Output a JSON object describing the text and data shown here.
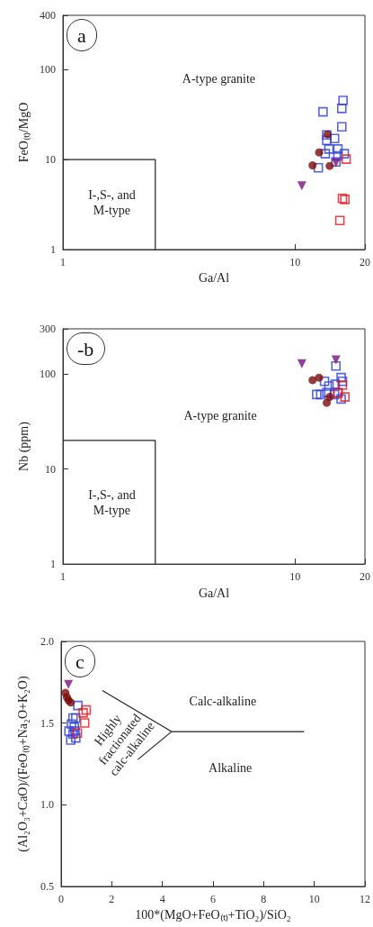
{
  "chart_data": [
    {
      "type": "scatter",
      "title": "a",
      "xlabel": "Ga/Al",
      "ylabel": "FeO₍ₜ₎/MgO",
      "log": "xy",
      "xlim": [
        1,
        20
      ],
      "xticks": [
        1,
        10,
        20
      ],
      "ylim": [
        1,
        400
      ],
      "yticks": [
        1,
        10,
        100,
        400
      ],
      "grid": false,
      "annotations": [
        "A-type granite",
        "I-,S-, and\nM-type"
      ],
      "series": [
        {
          "type": "line",
          "color": "#222222",
          "x": [
            1,
            2.5,
            2.5
          ],
          "values": [
            10,
            10,
            1
          ]
        },
        {
          "marker": "square",
          "color": "#2b3fd6",
          "x": [
            13.2,
            16.1,
            15.9,
            15.9,
            13.7,
            13.7,
            14.8,
            14.0,
            15.3,
            13.5,
            15.3,
            16.3,
            12.6,
            15.0
          ],
          "values": [
            33.9,
            45.4,
            36.9,
            23.1,
            18.8,
            16.3,
            17.1,
            13.1,
            13.1,
            11.6,
            11.0,
            11.6,
            8.1,
            9.4
          ]
        },
        {
          "marker": "circle",
          "color": "#7a0a0a",
          "x": [
            13.8,
            12.7,
            11.9,
            14.1
          ],
          "values": [
            19.0,
            12.0,
            8.6,
            8.5
          ]
        },
        {
          "marker": "triangle",
          "color": "#7b1080",
          "x": [
            10.7,
            15.0
          ],
          "values": [
            5.1,
            9.2
          ]
        },
        {
          "marker": "square",
          "color": "#e8141c",
          "x": [
            16.6,
            16.0,
            16.4,
            15.6
          ],
          "values": [
            10.1,
            3.7,
            3.6,
            2.1
          ]
        }
      ]
    },
    {
      "type": "scatter",
      "title": "-b",
      "xlabel": "Ga/Al",
      "ylabel": "Nb (ppm)",
      "log": "xy",
      "xlim": [
        1,
        20
      ],
      "xticks": [
        1,
        10,
        20
      ],
      "ylim": [
        1,
        300
      ],
      "yticks": [
        1,
        10,
        100,
        300
      ],
      "grid": false,
      "annotations": [
        "A-type granite",
        "I-,S-, and\nM-type"
      ],
      "series": [
        {
          "type": "line",
          "color": "#222222",
          "x": [
            1,
            2.5,
            2.5
          ],
          "values": [
            20,
            20,
            1
          ]
        },
        {
          "marker": "square",
          "color": "#2b3fd6",
          "x": [
            15.0,
            13.4,
            14.0,
            14.9,
            15.8,
            16.0,
            12.4,
            12.9,
            13.7,
            15.3,
            15.8,
            14.8
          ],
          "values": [
            122,
            84,
            75,
            78,
            92,
            84,
            61,
            61,
            64,
            64,
            54.7,
            61
          ]
        },
        {
          "marker": "circle",
          "color": "#7a0a0a",
          "x": [
            11.9,
            12.7,
            14.1,
            13.7
          ],
          "values": [
            86.6,
            91.8,
            57.5,
            49.9
          ]
        },
        {
          "marker": "triangle",
          "color": "#7b1080",
          "x": [
            10.7,
            15.0
          ],
          "values": [
            129,
            141
          ]
        },
        {
          "marker": "square",
          "color": "#e8141c",
          "x": [
            16.0,
            16.4,
            15.3
          ],
          "values": [
            76.7,
            57.5,
            63
          ]
        }
      ]
    },
    {
      "type": "scatter",
      "title": "c",
      "xlabel": "100*(MgO+FeO₍ₜ₎+TiO₂)/SiO₂",
      "ylabel": "(Al₂O₃+CaO)/(FeO₍ₜ₎+Na₂O+K₂O)",
      "xlim": [
        0,
        12
      ],
      "xticks": [
        0,
        2,
        4,
        6,
        8,
        10,
        12
      ],
      "ylim": [
        0.5,
        2.0
      ],
      "yticks": [
        {
          "value": 0.5,
          "label": "0.5"
        },
        {
          "value": 1,
          "label": "1.0"
        },
        {
          "value": 1.5,
          "label": "1.5"
        },
        {
          "value": 2,
          "label": "2.0"
        }
      ],
      "grid": false,
      "annotations": [
        "Calc-alkaline",
        "Alkaline",
        "Highly\nfractionated\ncalc-alkaline"
      ],
      "series": [
        {
          "type": "line",
          "color": "#222222",
          "x": [
            1.63,
            4.36,
            9.6
          ],
          "values": [
            1.7,
            1.448,
            1.448
          ]
        },
        {
          "type": "line",
          "color": "#222222",
          "x": [
            3.03,
            4.36
          ],
          "values": [
            1.277,
            1.448
          ]
        },
        {
          "marker": "square",
          "color": "#2b3fd6",
          "x": [
            0.66,
            0.47,
            0.58,
            0.41,
            0.52,
            0.31,
            0.55,
            0.38,
            0.58,
            0.47
          ],
          "values": [
            1.608,
            1.531,
            1.531,
            1.494,
            1.475,
            1.451,
            1.451,
            1.396,
            1.409,
            1.433
          ]
        },
        {
          "marker": "circle",
          "color": "#7a0a0a",
          "x": [
            0.17,
            0.23,
            0.29,
            0.38
          ],
          "values": [
            1.685,
            1.658,
            1.64,
            1.626
          ]
        },
        {
          "marker": "triangle",
          "color": "#7b1080",
          "x": [
            0.29
          ],
          "values": [
            1.737
          ]
        },
        {
          "marker": "square",
          "color": "#e8141c",
          "x": [
            0.99,
            0.87,
            0.93,
            0.64
          ],
          "values": [
            1.58,
            1.562,
            1.501,
            1.439
          ]
        }
      ]
    }
  ]
}
